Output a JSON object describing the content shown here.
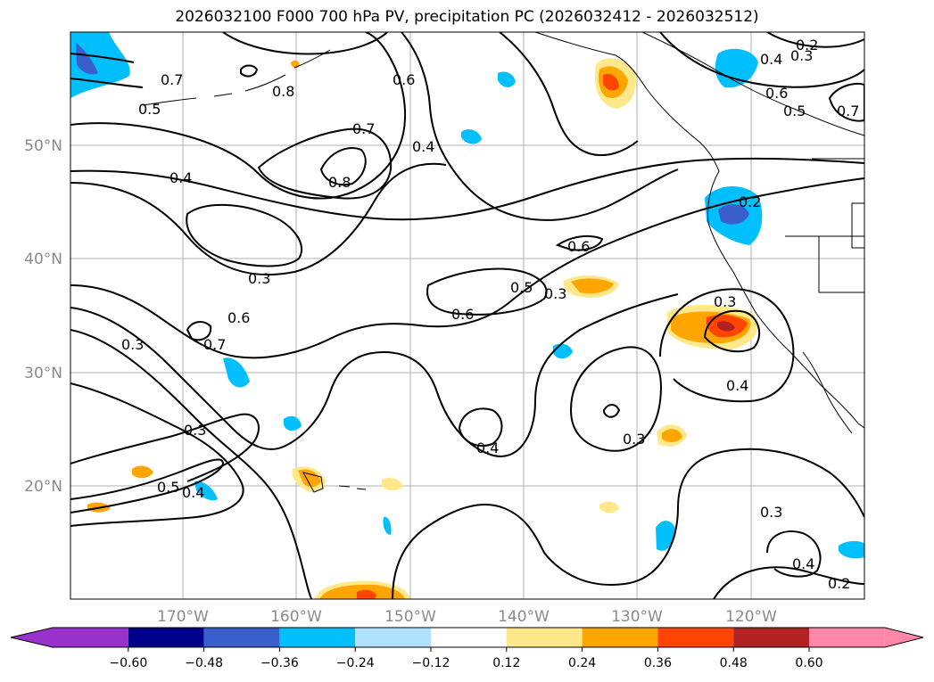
{
  "title": "2026032100 F000 700 hPa PV, precipitation PC (2026032412 - 2026032512)",
  "map": {
    "projection": "PlateCarree",
    "lon_range": [
      -180,
      -110
    ],
    "lat_range": [
      10,
      60
    ],
    "gridlines": true
  },
  "lat_labels": [
    "50°N",
    "40°N",
    "30°N",
    "20°N"
  ],
  "lon_labels": [
    "170°W",
    "160°W",
    "150°W",
    "140°W",
    "130°W",
    "120°W"
  ],
  "contour_labels": [
    "0.7",
    "0.8",
    "0.5",
    "0.6",
    "0.4",
    "0.7",
    "0.8",
    "0.4",
    "0.2",
    "0.4",
    "0.3",
    "0.6",
    "0.5",
    "0.7",
    "0.2",
    "0.6",
    "0.5",
    "0.3",
    "0.6",
    "0.3",
    "0.6",
    "0.7",
    "0.3",
    "0.3",
    "0.5",
    "0.4",
    "0.4",
    "0.3",
    "0.3",
    "0.4",
    "0.3",
    "0.4",
    "0.2"
  ],
  "colorbar": {
    "colors": [
      "#9932cc",
      "#00008b",
      "#3a5fcd",
      "#00bfff",
      "#b0e2ff",
      "#ffffff",
      "#ffe88a",
      "#ffa500",
      "#ff4500",
      "#b22222",
      "#ff88aa"
    ],
    "tick_labels": [
      "−0.60",
      "−0.48",
      "−0.36",
      "−0.24",
      "−0.12",
      "0.12",
      "0.24",
      "0.36",
      "0.48",
      "0.60"
    ]
  }
}
